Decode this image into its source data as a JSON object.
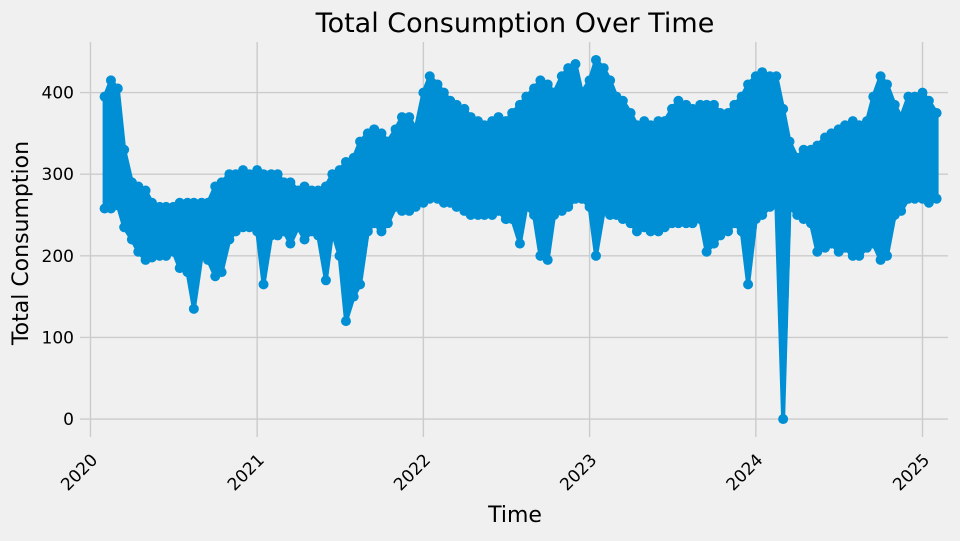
{
  "chart_data": {
    "type": "line",
    "title": "Total Consumption Over Time",
    "xlabel": "Time",
    "ylabel": "Total Consumption",
    "x_ticks": [
      "2020",
      "2021",
      "2022",
      "2023",
      "2024",
      "2025"
    ],
    "y_ticks": [
      0,
      100,
      200,
      300,
      400
    ],
    "xlim": [
      "2019-12-09",
      "2025-02-26"
    ],
    "ylim": [
      -22,
      462
    ],
    "grid": true,
    "legend": "none",
    "marker": "circle",
    "series_color": "#008fd5",
    "series": [
      {
        "x": [
          "2020-02-01",
          "2020-02-15",
          "2020-03-01",
          "2020-03-15",
          "2020-04-01",
          "2020-04-15",
          "2020-05-01",
          "2020-05-15",
          "2020-06-01",
          "2020-06-15",
          "2020-07-01",
          "2020-07-15",
          "2020-08-01",
          "2020-08-15",
          "2020-09-01",
          "2020-09-15",
          "2020-10-01",
          "2020-10-15",
          "2020-11-01",
          "2020-11-15",
          "2020-12-01",
          "2020-12-15",
          "2021-01-01",
          "2021-01-15",
          "2021-02-01",
          "2021-02-15",
          "2021-03-01",
          "2021-03-15",
          "2021-04-01",
          "2021-04-15",
          "2021-05-01",
          "2021-05-15",
          "2021-06-01",
          "2021-06-15",
          "2021-07-01",
          "2021-07-15",
          "2021-08-01",
          "2021-08-15",
          "2021-09-01",
          "2021-09-15",
          "2021-10-01",
          "2021-10-15",
          "2021-11-01",
          "2021-11-15",
          "2021-12-01",
          "2021-12-15",
          "2022-01-01",
          "2022-01-15",
          "2022-02-01",
          "2022-02-15",
          "2022-03-01",
          "2022-03-15",
          "2022-04-01",
          "2022-04-15",
          "2022-05-01",
          "2022-05-15",
          "2022-06-01",
          "2022-06-15",
          "2022-07-01",
          "2022-07-15",
          "2022-08-01",
          "2022-08-15",
          "2022-09-01",
          "2022-09-15",
          "2022-10-01",
          "2022-10-15",
          "2022-11-01",
          "2022-11-15",
          "2022-12-01",
          "2022-12-15",
          "2023-01-01",
          "2023-01-15",
          "2023-02-01",
          "2023-02-15",
          "2023-03-01",
          "2023-03-15",
          "2023-04-01",
          "2023-04-15",
          "2023-05-01",
          "2023-05-15",
          "2023-06-01",
          "2023-06-15",
          "2023-07-01",
          "2023-07-15",
          "2023-08-01",
          "2023-08-15",
          "2023-09-01",
          "2023-09-15",
          "2023-10-01",
          "2023-10-15",
          "2023-11-01",
          "2023-11-15",
          "2023-12-01",
          "2023-12-15",
          "2024-01-01",
          "2024-01-15",
          "2024-02-01",
          "2024-02-15",
          "2024-03-01",
          "2024-03-15",
          "2024-04-01",
          "2024-04-15",
          "2024-05-01",
          "2024-05-15",
          "2024-06-01",
          "2024-06-15",
          "2024-07-01",
          "2024-07-15",
          "2024-08-01",
          "2024-08-15",
          "2024-09-01",
          "2024-09-15",
          "2024-10-01",
          "2024-10-15",
          "2024-11-01",
          "2024-11-15",
          "2024-12-01",
          "2024-12-15",
          "2025-01-01",
          "2025-01-15",
          "2025-02-01"
        ],
        "low": [
          258,
          258,
          262,
          235,
          220,
          205,
          195,
          198,
          200,
          200,
          205,
          185,
          180,
          135,
          200,
          195,
          175,
          180,
          220,
          230,
          235,
          235,
          230,
          165,
          225,
          225,
          230,
          215,
          235,
          220,
          230,
          225,
          170,
          230,
          200,
          120,
          150,
          165,
          230,
          240,
          230,
          240,
          260,
          255,
          255,
          260,
          265,
          270,
          270,
          265,
          265,
          260,
          255,
          250,
          250,
          250,
          250,
          255,
          245,
          245,
          215,
          260,
          250,
          200,
          195,
          250,
          255,
          260,
          270,
          270,
          260,
          200,
          255,
          250,
          250,
          245,
          240,
          230,
          235,
          230,
          230,
          235,
          240,
          240,
          240,
          240,
          245,
          205,
          215,
          225,
          230,
          240,
          230,
          165,
          245,
          250,
          260,
          265,
          0,
          260,
          250,
          245,
          240,
          205,
          210,
          215,
          205,
          210,
          200,
          200,
          210,
          215,
          195,
          200,
          250,
          255,
          270,
          270,
          270,
          265,
          270
        ],
        "high": [
          395,
          415,
          405,
          330,
          290,
          285,
          280,
          265,
          260,
          260,
          260,
          265,
          265,
          265,
          265,
          265,
          285,
          290,
          300,
          300,
          305,
          300,
          305,
          300,
          300,
          300,
          290,
          290,
          280,
          285,
          280,
          280,
          285,
          300,
          305,
          315,
          320,
          340,
          350,
          355,
          350,
          340,
          355,
          370,
          370,
          355,
          400,
          420,
          410,
          400,
          390,
          385,
          380,
          370,
          365,
          360,
          365,
          370,
          365,
          375,
          385,
          395,
          405,
          415,
          410,
          400,
          420,
          430,
          435,
          400,
          415,
          440,
          430,
          415,
          395,
          390,
          375,
          360,
          365,
          360,
          365,
          365,
          380,
          390,
          385,
          380,
          385,
          385,
          385,
          375,
          375,
          385,
          395,
          410,
          420,
          425,
          420,
          420,
          380,
          340,
          320,
          330,
          330,
          335,
          345,
          350,
          355,
          360,
          365,
          360,
          365,
          395,
          420,
          410,
          385,
          370,
          395,
          395,
          400,
          390,
          375
        ]
      }
    ]
  }
}
